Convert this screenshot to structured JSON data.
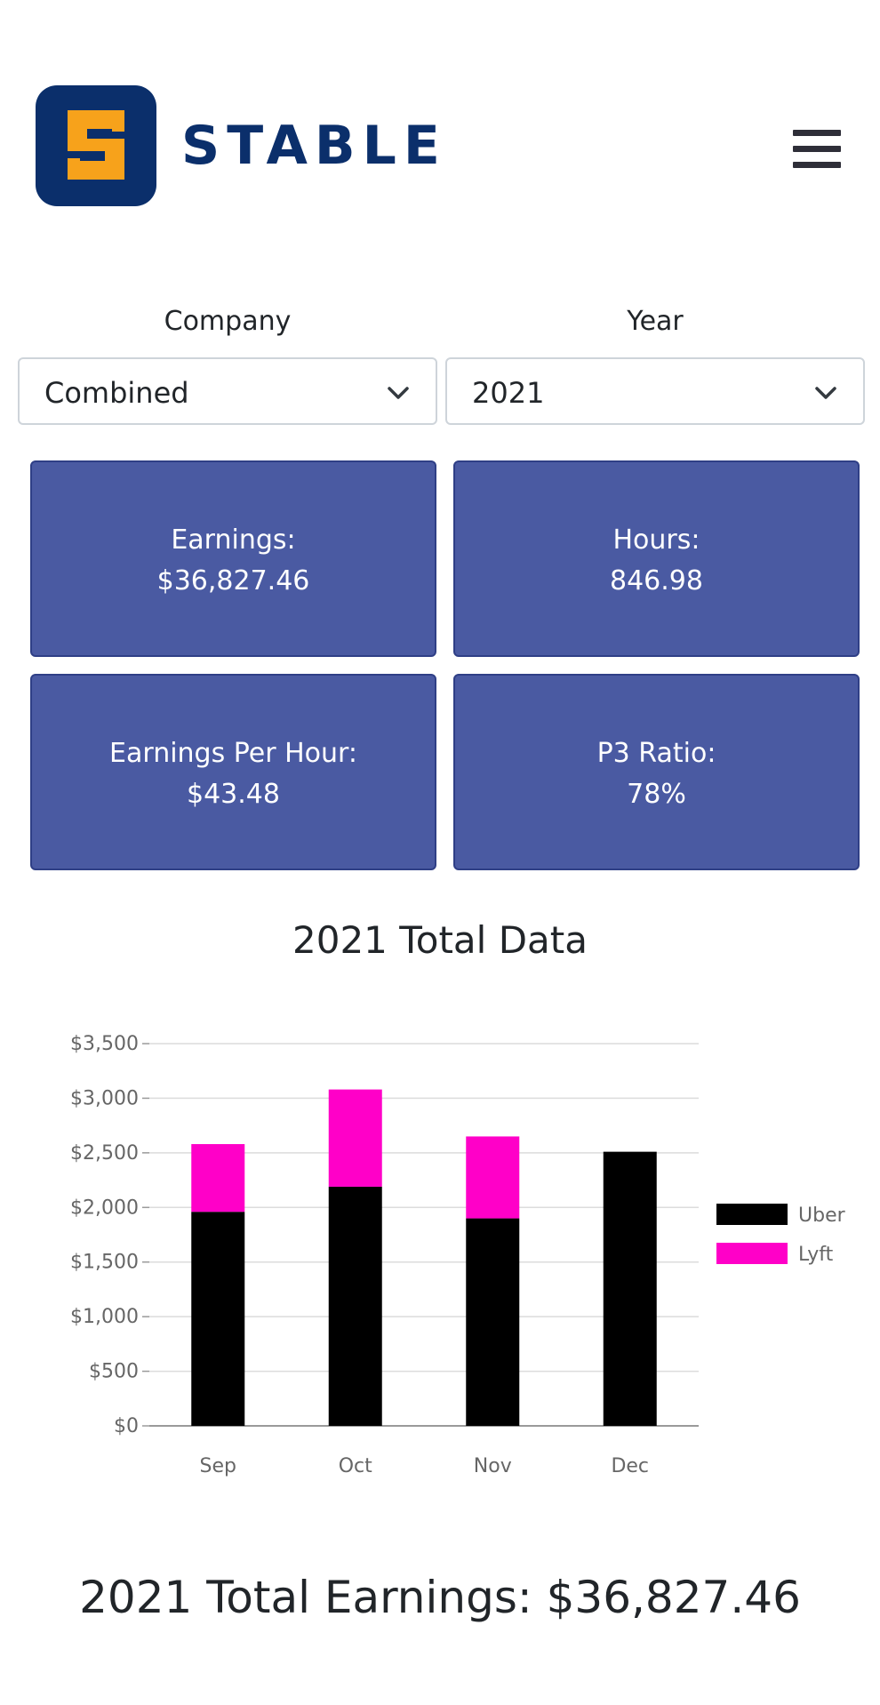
{
  "header": {
    "brand": "STABLE",
    "logo_icon": "stable-s-logo-icon",
    "menu_icon": "hamburger-menu-icon",
    "colors": {
      "brand": "#0b2f6b",
      "logo_accent": "#f7a21b"
    }
  },
  "filters": {
    "company": {
      "label": "Company",
      "value": "Combined"
    },
    "year": {
      "label": "Year",
      "value": "2021"
    }
  },
  "stats": {
    "earnings": {
      "label": "Earnings:",
      "value": "$36,827.46"
    },
    "hours": {
      "label": "Hours:",
      "value": "846.98"
    },
    "eph": {
      "label": "Earnings Per Hour:",
      "value": "$43.48"
    },
    "p3": {
      "label": "P3 Ratio:",
      "value": "78%"
    },
    "card_color": "#4a5aa2"
  },
  "chart_title": "2021 Total Data",
  "chart_data": {
    "type": "bar",
    "stacked": true,
    "categories": [
      "Sep",
      "Oct",
      "Nov",
      "Dec"
    ],
    "series": [
      {
        "name": "Uber",
        "color": "#000000",
        "values": [
          1960,
          2190,
          1900,
          2510
        ]
      },
      {
        "name": "Lyft",
        "color": "#ff00c8",
        "values": [
          620,
          890,
          750,
          0
        ]
      }
    ],
    "ylim": [
      0,
      3500
    ],
    "yticks": [
      "$0",
      "$500",
      "$1,000",
      "$1,500",
      "$2,000",
      "$2,500",
      "$3,000",
      "$3,500"
    ],
    "ytick_values": [
      0,
      500,
      1000,
      1500,
      2000,
      2500,
      3000,
      3500
    ],
    "grid": true,
    "legend": "right"
  },
  "total_earnings": "2021 Total Earnings: $36,827.46"
}
